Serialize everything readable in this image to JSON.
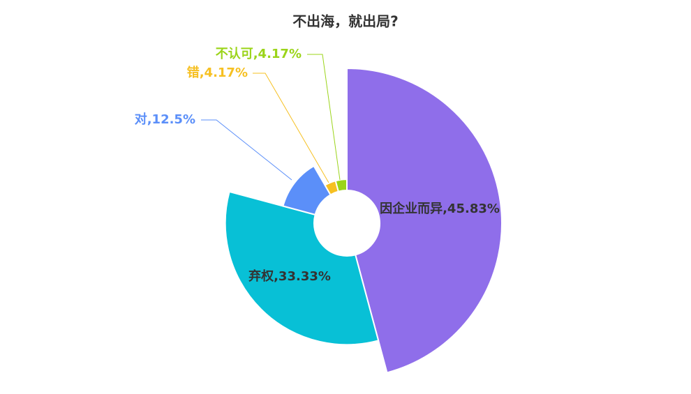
{
  "chart_data": {
    "type": "rose",
    "title": "不出海，就出局?",
    "categories": [
      "因企业而异",
      "弃权",
      "对",
      "错",
      "不认可"
    ],
    "values": [
      45.83,
      33.33,
      12.5,
      4.17,
      4.17
    ],
    "value_labels": [
      "因企业而异,45.83%",
      "弃权,33.33%",
      "对,12.5%",
      "错,4.17%",
      "不认可,4.17%"
    ],
    "colors": [
      "#8f6eea",
      "#08c0d6",
      "#5b8ff9",
      "#f6c022",
      "#9bd41a"
    ]
  }
}
